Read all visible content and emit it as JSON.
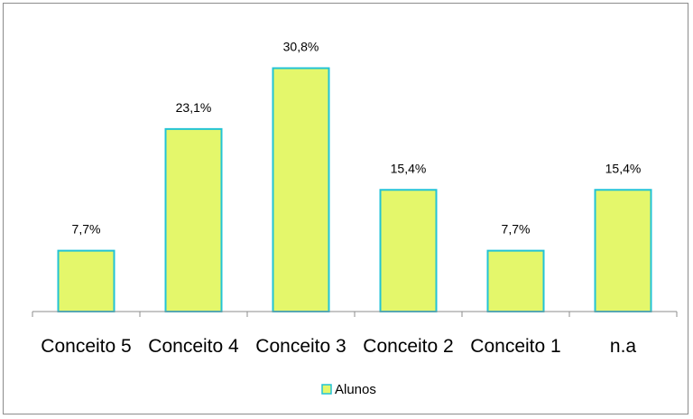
{
  "chart_data": {
    "type": "bar",
    "categories": [
      "Conceito 5",
      "Conceito 4",
      "Conceito 3",
      "Conceito 2",
      "Conceito 1",
      "n.a"
    ],
    "series": [
      {
        "name": "Alunos",
        "values": [
          7.7,
          23.1,
          30.8,
          15.4,
          7.7,
          15.4
        ],
        "labels": [
          "7,7%",
          "23,1%",
          "30,8%",
          "15,4%",
          "7,7%",
          "15,4%"
        ]
      }
    ],
    "title": "",
    "xlabel": "",
    "ylabel": "",
    "ylim": [
      0,
      35
    ],
    "grid": false,
    "legend_position": "bottom",
    "colors": {
      "bar_fill": "#e4f76b",
      "bar_stroke": "#22c3d6",
      "axis": "#8c8c8c",
      "frame": "#8c8c8c"
    }
  }
}
